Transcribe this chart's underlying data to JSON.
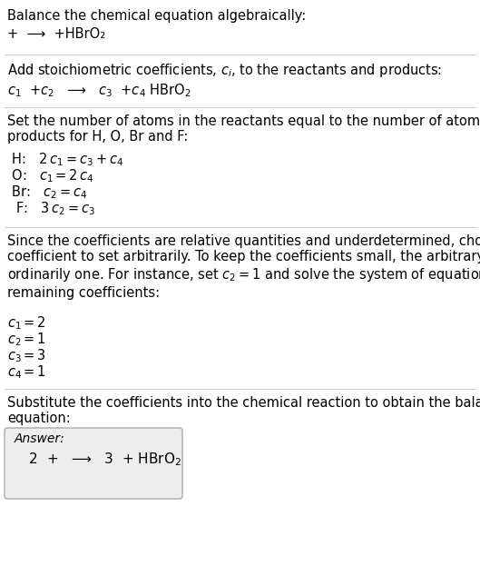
{
  "title": "Balance the chemical equation algebraically:",
  "line1": "+  ⟶  +HBrO₂",
  "section2_title": "Add stoichiometric coefficients, $c_i$, to the reactants and products:",
  "line2": "$c_1$  +$c_2$   ⟶   $c_3$  +$c_4$ HBrO$_2$",
  "section3_title": "Set the number of atoms in the reactants equal to the number of atoms in the\nproducts for H, O, Br and F:",
  "equations": [
    " H:   $2\\,c_1 = c_3 + c_4$",
    " O:   $c_1 = 2\\,c_4$",
    " Br:   $c_2 = c_4$",
    "  F:   $3\\,c_2 = c_3$"
  ],
  "section4_text": "Since the coefficients are relative quantities and underdetermined, choose a\ncoefficient to set arbitrarily. To keep the coefficients small, the arbitrary value is\nordinarily one. For instance, set $c_2 = 1$ and solve the system of equations for the\nremaining coefficients:",
  "coefficients": [
    "$c_1 = 2$",
    "$c_2 = 1$",
    "$c_3 = 3$",
    "$c_4 = 1$"
  ],
  "section5_text": "Substitute the coefficients into the chemical reaction to obtain the balanced\nequation:",
  "answer_label": "Answer:",
  "answer_eq": "  $2$  +   ⟶   $3$  + HBrO$_2$",
  "bg_color": "#ffffff",
  "text_color": "#000000",
  "line_color": "#cccccc",
  "font_size": 10.5,
  "dpi": 100,
  "fig_width": 5.29,
  "fig_height": 6.23
}
